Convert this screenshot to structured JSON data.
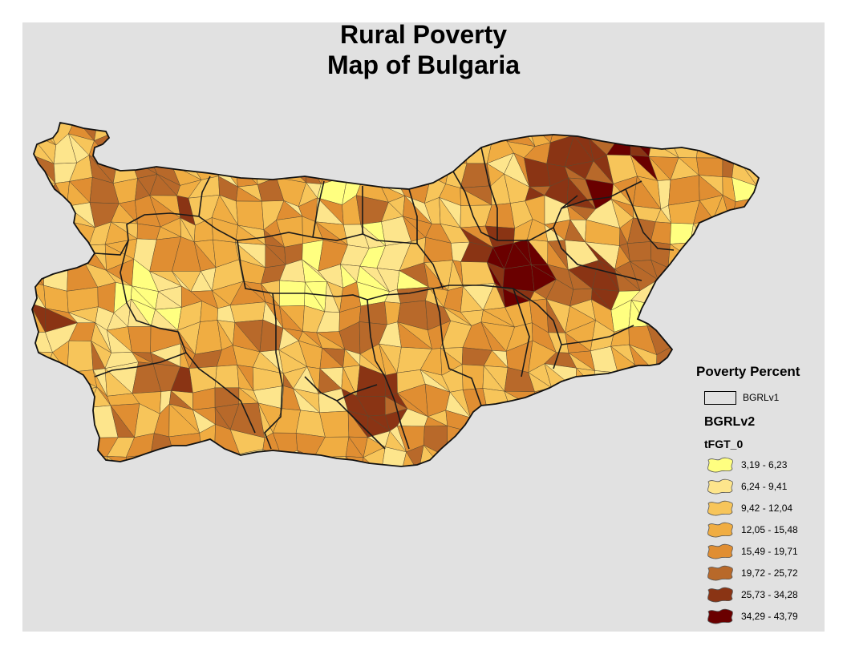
{
  "title": {
    "line1": "Rural Poverty",
    "line2": "Map of Bulgaria"
  },
  "colors": {
    "frame_background": "#e1e1e1",
    "page_background": "#ffffff",
    "boundary": "#1a1a1a"
  },
  "legend": {
    "title": "Poverty Percent",
    "layer1": {
      "label": "BGRLv1",
      "symbol": "outline-box"
    },
    "layer2": {
      "title": "BGRLv2",
      "field": "tFGT_0",
      "classes": [
        {
          "label": "3,19 - 6,23",
          "color": "#ffff80"
        },
        {
          "label": "6,24 - 9,41",
          "color": "#fde58c"
        },
        {
          "label": "9,42 - 12,04",
          "color": "#f7c55a"
        },
        {
          "label": "12,05 - 15,48",
          "color": "#f0ad42"
        },
        {
          "label": "15,49 - 19,71",
          "color": "#e08e32"
        },
        {
          "label": "19,72 - 25,72",
          "color": "#b8692a"
        },
        {
          "label": "25,73 - 34,28",
          "color": "#8a3414"
        },
        {
          "label": "34,29 - 43,79",
          "color": "#6a0000"
        }
      ]
    }
  }
}
